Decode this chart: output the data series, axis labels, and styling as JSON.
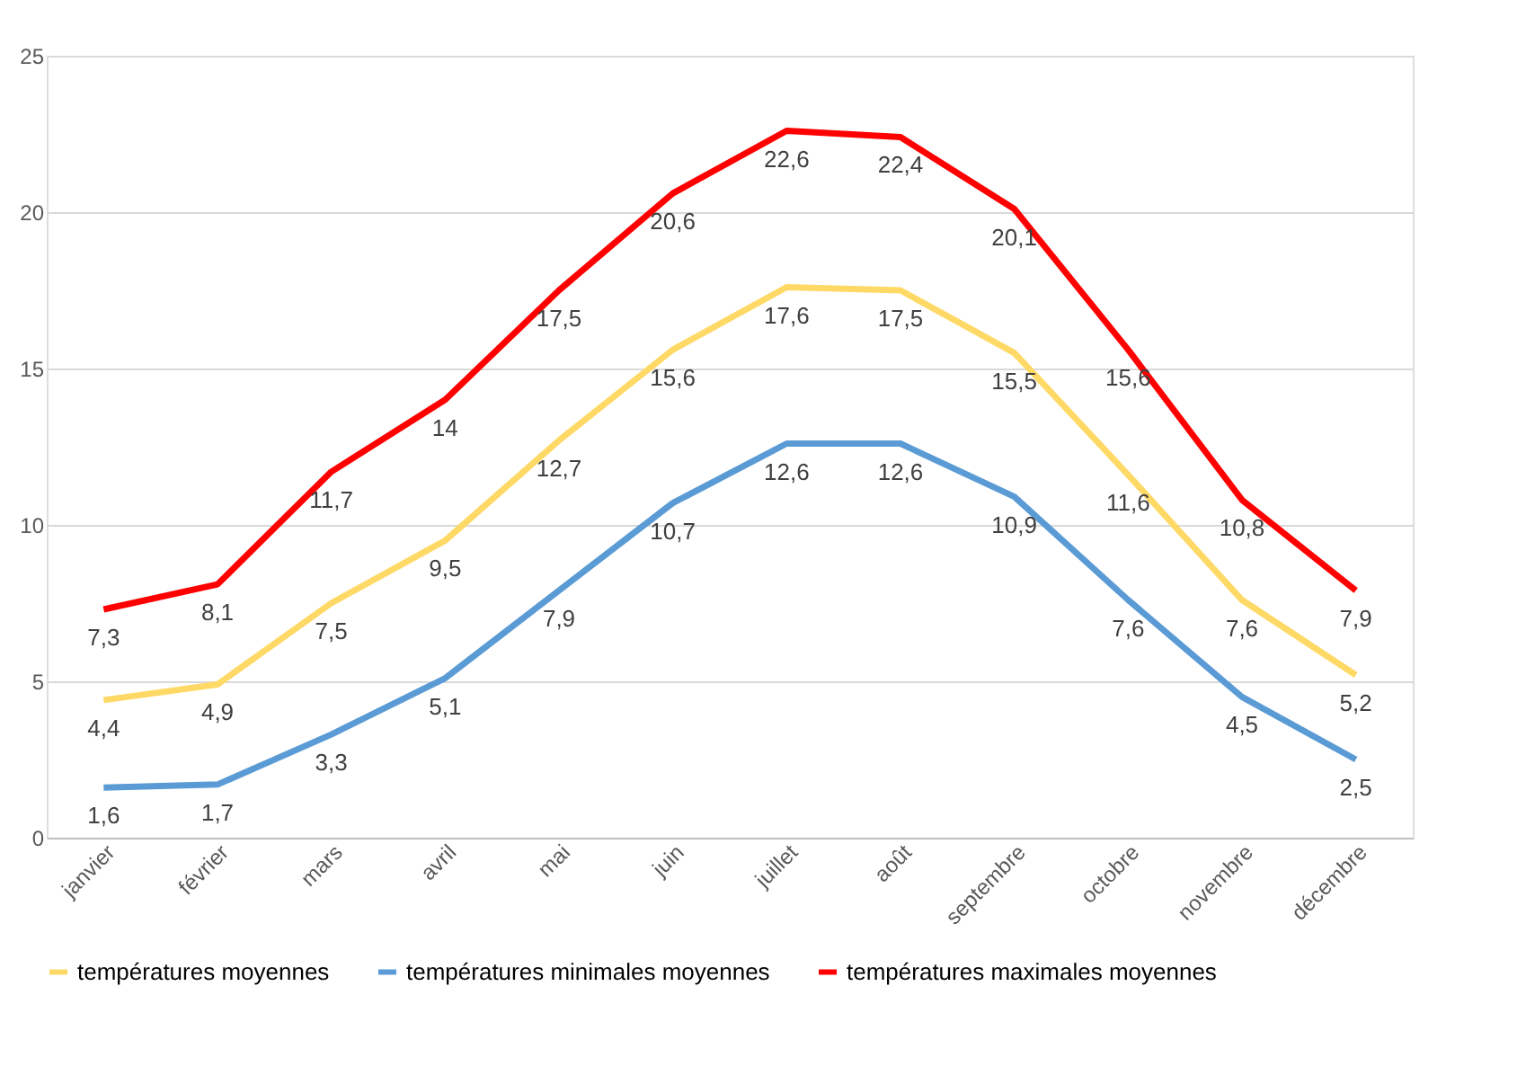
{
  "chart_data": {
    "type": "line",
    "categories": [
      "janvier",
      "février",
      "mars",
      "avril",
      "mai",
      "juin",
      "juillet",
      "août",
      "septembre",
      "octobre",
      "novembre",
      "décembre"
    ],
    "series": [
      {
        "name": "températures moyennes",
        "color": "#ffd966",
        "values": [
          4.4,
          4.9,
          7.5,
          9.5,
          12.7,
          15.6,
          17.6,
          17.5,
          15.5,
          11.6,
          7.6,
          5.2
        ],
        "value_labels": [
          "4,4",
          "4,9",
          "7,5",
          "9,5",
          "12,7",
          "15,6",
          "17,6",
          "17,5",
          "15,5",
          "11,6",
          "7,6",
          "5,2"
        ]
      },
      {
        "name": "températures minimales moyennes",
        "color": "#5b9bd5",
        "values": [
          1.6,
          1.7,
          3.3,
          5.1,
          7.9,
          10.7,
          12.6,
          12.6,
          10.9,
          7.6,
          4.5,
          2.5
        ],
        "value_labels": [
          "1,6",
          "1,7",
          "3,3",
          "5,1",
          "7,9",
          "10,7",
          "12,6",
          "12,6",
          "10,9",
          "7,6",
          "4,5",
          "2,5"
        ]
      },
      {
        "name": "températures maximales moyennes",
        "color": "#ff0000",
        "values": [
          7.3,
          8.1,
          11.7,
          14,
          17.5,
          20.6,
          22.6,
          22.4,
          20.1,
          15.6,
          10.8,
          7.9
        ],
        "value_labels": [
          "7,3",
          "8,1",
          "11,7",
          "14",
          "17,5",
          "20,6",
          "22,6",
          "22,4",
          "20,1",
          "15,6",
          "10,8",
          "7,9"
        ]
      }
    ],
    "ylim": [
      0,
      25
    ],
    "yticks": [
      0,
      5,
      10,
      15,
      20,
      25
    ],
    "grid": "y",
    "legend": "bottom",
    "marker": "none",
    "line_style": "solid"
  }
}
